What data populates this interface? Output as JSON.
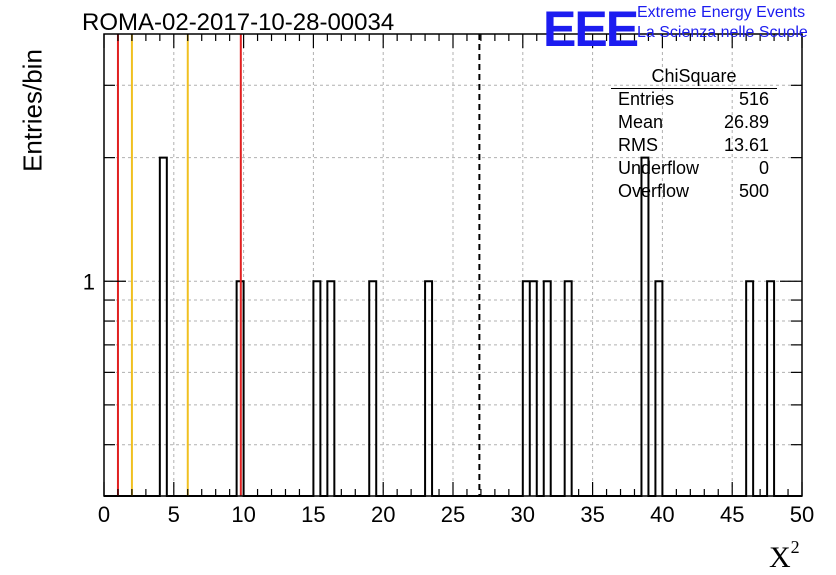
{
  "title": "ROMA-02-2017-10-28-00034",
  "logo": {
    "mark": "EEE",
    "line1": "Extreme Energy Events",
    "line2": "La Scienza nelle Scuole",
    "color": "#1c1cf0"
  },
  "stats": {
    "title": "ChiSquare",
    "rows": [
      {
        "label": "Entries",
        "value": "516"
      },
      {
        "label": "Mean",
        "value": "26.89"
      },
      {
        "label": "RMS",
        "value": "13.61"
      },
      {
        "label": "Underflow",
        "value": "0"
      },
      {
        "label": "Overflow",
        "value": "500"
      }
    ]
  },
  "chart_data": {
    "type": "bar",
    "title": "ROMA-02-2017-10-28-00034",
    "xlabel": "X",
    "xlabel_superscript": "2",
    "ylabel": "Entries/bin",
    "xlim": [
      0,
      50
    ],
    "ylim": [
      0.3,
      4
    ],
    "yscale": "log",
    "grid": true,
    "bin_width": 0.5,
    "x_ticks": [
      "0",
      "5",
      "10",
      "15",
      "20",
      "25",
      "30",
      "35",
      "40",
      "45",
      "50"
    ],
    "y_ticks": [
      "1"
    ],
    "bins": [
      {
        "x": 4.0,
        "count": 2
      },
      {
        "x": 9.5,
        "count": 1
      },
      {
        "x": 15.0,
        "count": 1
      },
      {
        "x": 16.0,
        "count": 1
      },
      {
        "x": 19.0,
        "count": 1
      },
      {
        "x": 23.0,
        "count": 1
      },
      {
        "x": 30.0,
        "count": 1
      },
      {
        "x": 30.5,
        "count": 1
      },
      {
        "x": 31.5,
        "count": 1
      },
      {
        "x": 33.0,
        "count": 1
      },
      {
        "x": 38.5,
        "count": 2
      },
      {
        "x": 39.5,
        "count": 1
      },
      {
        "x": 46.0,
        "count": 1
      },
      {
        "x": 47.5,
        "count": 1
      }
    ],
    "vertical_lines": [
      {
        "x": 1.0,
        "color": "#e02020",
        "style": "solid"
      },
      {
        "x": 2.0,
        "color": "#f0c020",
        "style": "solid"
      },
      {
        "x": 6.0,
        "color": "#f0c020",
        "style": "solid"
      },
      {
        "x": 9.8,
        "color": "#e02020",
        "style": "solid"
      },
      {
        "x": 26.89,
        "color": "#000000",
        "style": "dashed"
      }
    ]
  }
}
